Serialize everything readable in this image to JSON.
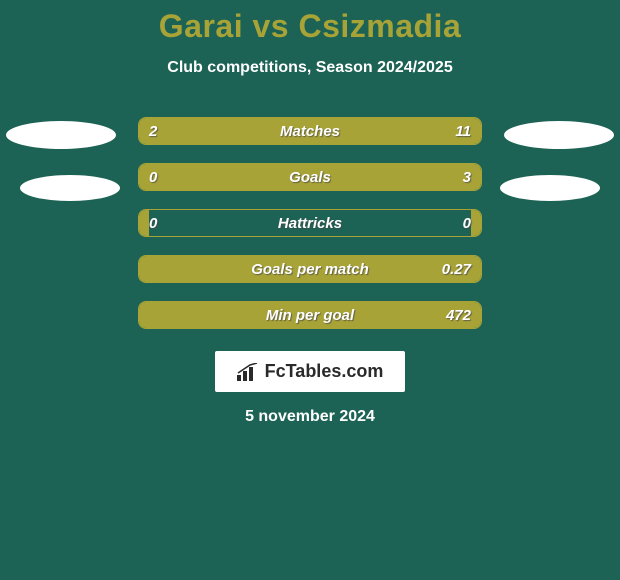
{
  "background_color": "#1d6355",
  "title": {
    "text": "Garai vs Csizmadia",
    "color": "#a8a337",
    "fontsize": 32
  },
  "subtitle": "Club competitions, Season 2024/2025",
  "bar": {
    "border_color": "#a8a337",
    "fill_color": "#a8a337",
    "track_color": "transparent",
    "height": 28,
    "radius": 8,
    "label_fontsize": 15
  },
  "rows": [
    {
      "label": "Matches",
      "left_text": "2",
      "right_text": "11",
      "left_pct": 17,
      "right_pct": 83
    },
    {
      "label": "Goals",
      "left_text": "0",
      "right_text": "3",
      "left_pct": 3,
      "right_pct": 97
    },
    {
      "label": "Hattricks",
      "left_text": "0",
      "right_text": "0",
      "left_pct": 3,
      "right_pct": 3
    },
    {
      "label": "Goals per match",
      "left_text": "",
      "right_text": "0.27",
      "left_pct": 3,
      "right_pct": 97
    },
    {
      "label": "Min per goal",
      "left_text": "",
      "right_text": "472",
      "left_pct": 3,
      "right_pct": 97
    }
  ],
  "brand": "FcTables.com",
  "date": "5 november 2024",
  "avatar_color": "#ffffff"
}
